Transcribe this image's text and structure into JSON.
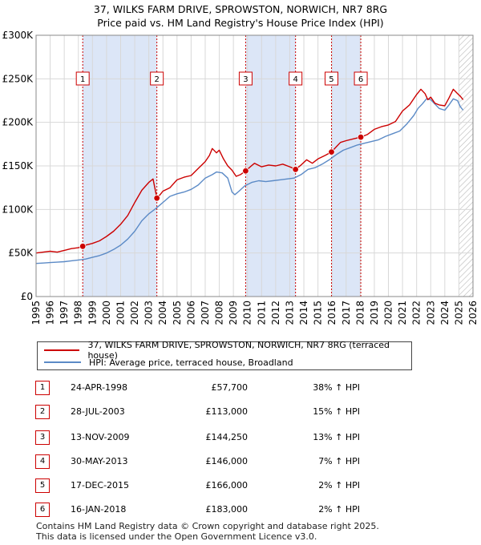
{
  "title_line1": "37, WILKS FARM DRIVE, SPROWSTON, NORWICH, NR7 8RG",
  "title_line2": "Price paid vs. HM Land Registry's House Price Index (HPI)",
  "colors": {
    "price_line": "#cc0000",
    "hpi_line": "#5b8ac6",
    "shade": "#dce6f7",
    "grid": "#d8d8d8",
    "marker_border": "#cc0000"
  },
  "legend": {
    "price_label": "37, WILKS FARM DRIVE, SPROWSTON, NORWICH, NR7 8RG (terraced house)",
    "hpi_label": "HPI: Average price, terraced house, Broadland"
  },
  "transactions": [
    {
      "num": "1",
      "date": "24-APR-1998",
      "price": "£57,700",
      "hpi": "38% ↑ HPI"
    },
    {
      "num": "2",
      "date": "28-JUL-2003",
      "price": "£113,000",
      "hpi": "15% ↑ HPI"
    },
    {
      "num": "3",
      "date": "13-NOV-2009",
      "price": "£144,250",
      "hpi": "13% ↑ HPI"
    },
    {
      "num": "4",
      "date": "30-MAY-2013",
      "price": "£146,000",
      "hpi": "7% ↑ HPI"
    },
    {
      "num": "5",
      "date": "17-DEC-2015",
      "price": "£166,000",
      "hpi": "2% ↑ HPI"
    },
    {
      "num": "6",
      "date": "16-JAN-2018",
      "price": "£183,000",
      "hpi": "2% ↑ HPI"
    }
  ],
  "footer_line1": "Contains HM Land Registry data © Crown copyright and database right 2025.",
  "footer_line2": "This data is licensed under the Open Government Licence v3.0.",
  "chart_data": {
    "type": "line",
    "xlim": [
      1995,
      2026
    ],
    "ylim": [
      0,
      300000
    ],
    "x_ticks": [
      1995,
      1996,
      1997,
      1998,
      1999,
      2000,
      2001,
      2002,
      2003,
      2004,
      2005,
      2006,
      2007,
      2008,
      2009,
      2010,
      2011,
      2012,
      2013,
      2014,
      2015,
      2016,
      2017,
      2018,
      2019,
      2020,
      2021,
      2022,
      2023,
      2024,
      2025,
      2026
    ],
    "y_ticks": [
      {
        "value": 0,
        "label": "£0"
      },
      {
        "value": 50000,
        "label": "£50K"
      },
      {
        "value": 100000,
        "label": "£100K"
      },
      {
        "value": 150000,
        "label": "£150K"
      },
      {
        "value": 200000,
        "label": "£200K"
      },
      {
        "value": 250000,
        "label": "£250K"
      },
      {
        "value": 300000,
        "label": "£300K"
      }
    ],
    "shaded_ranges": [
      [
        1998.31,
        2003.57
      ],
      [
        2009.87,
        2013.41
      ],
      [
        2015.96,
        2018.04
      ]
    ],
    "hatch_from": 2025.0,
    "sales": [
      {
        "label": "1",
        "x": 1998.31,
        "y": 57700
      },
      {
        "label": "2",
        "x": 2003.57,
        "y": 113000
      },
      {
        "label": "3",
        "x": 2009.87,
        "y": 144250
      },
      {
        "label": "4",
        "x": 2013.41,
        "y": 146000
      },
      {
        "label": "5",
        "x": 2015.96,
        "y": 166000
      },
      {
        "label": "6",
        "x": 2018.04,
        "y": 183000
      }
    ],
    "series": [
      {
        "name": "37, WILKS FARM DRIVE, SPROWSTON, NORWICH, NR7 8RG (terraced house)",
        "x": [
          1995,
          1995.5,
          1996,
          1996.5,
          1997,
          1997.5,
          1998,
          1998.31,
          1998.5,
          1999,
          1999.5,
          2000,
          2000.5,
          2001,
          2001.5,
          2002,
          2002.5,
          2003,
          2003.3,
          2003.57,
          2003.8,
          2004,
          2004.5,
          2005,
          2005.5,
          2006,
          2006.5,
          2007,
          2007.3,
          2007.5,
          2007.8,
          2008,
          2008.3,
          2008.6,
          2008.9,
          2009.2,
          2009.5,
          2009.87,
          2010.2,
          2010.5,
          2011,
          2011.5,
          2012,
          2012.5,
          2013,
          2013.41,
          2013.8,
          2014.2,
          2014.6,
          2015,
          2015.5,
          2015.96,
          2016.3,
          2016.6,
          2017,
          2017.5,
          2018.04,
          2018.5,
          2019,
          2019.5,
          2020,
          2020.5,
          2021,
          2021.5,
          2022,
          2022.3,
          2022.6,
          2022.8,
          2023.0,
          2023.3,
          2023.6,
          2024.0,
          2024.3,
          2024.6,
          2024.9,
          2025.1,
          2025.3
        ],
        "y": [
          50000,
          51000,
          52000,
          51000,
          53000,
          55000,
          56000,
          57700,
          59000,
          61000,
          64000,
          69000,
          75000,
          83000,
          93000,
          108000,
          122000,
          131000,
          135000,
          113000,
          117000,
          121000,
          125000,
          134000,
          137000,
          139000,
          147000,
          155000,
          162000,
          170000,
          165000,
          168000,
          158000,
          150000,
          145000,
          138000,
          140000,
          144250,
          149000,
          153000,
          149000,
          151000,
          150000,
          152000,
          149000,
          146000,
          151000,
          157000,
          153000,
          158000,
          162000,
          166000,
          172000,
          177000,
          179000,
          181000,
          183000,
          186000,
          192000,
          195000,
          197000,
          201000,
          213000,
          220000,
          232000,
          238000,
          233000,
          226000,
          229000,
          222000,
          220000,
          219000,
          228000,
          238000,
          233000,
          230000,
          226000
        ]
      },
      {
        "name": "HPI: Average price, terraced house, Broadland",
        "x": [
          1995,
          1995.5,
          1996,
          1996.5,
          1997,
          1997.5,
          1998,
          1998.5,
          1999,
          1999.5,
          2000,
          2000.5,
          2001,
          2001.5,
          2002,
          2002.5,
          2003,
          2003.5,
          2004,
          2004.5,
          2005,
          2005.5,
          2006,
          2006.5,
          2007,
          2007.5,
          2007.8,
          2008.2,
          2008.6,
          2008.9,
          2009.1,
          2009.4,
          2009.8,
          2010.3,
          2010.8,
          2011.3,
          2011.8,
          2012.3,
          2012.8,
          2013.3,
          2013.8,
          2014.3,
          2014.8,
          2015.3,
          2015.8,
          2016.3,
          2016.8,
          2017.3,
          2017.8,
          2018.3,
          2018.8,
          2019.3,
          2019.8,
          2020.3,
          2020.8,
          2021.3,
          2021.8,
          2022.1,
          2022.4,
          2022.7,
          2023.0,
          2023.3,
          2023.6,
          2024.0,
          2024.3,
          2024.6,
          2024.9,
          2025.1,
          2025.3
        ],
        "y": [
          38000,
          38500,
          39000,
          39500,
          40000,
          41000,
          42000,
          43000,
          45000,
          47000,
          50000,
          54000,
          59000,
          66000,
          75000,
          87000,
          95000,
          101000,
          108000,
          115000,
          118000,
          120000,
          123000,
          128000,
          136000,
          140000,
          143000,
          142000,
          136000,
          120000,
          117000,
          121000,
          127000,
          131000,
          133000,
          132000,
          133000,
          134000,
          135000,
          136000,
          140000,
          146000,
          148000,
          152000,
          157000,
          163000,
          168000,
          171000,
          174000,
          176000,
          178000,
          180000,
          184000,
          187000,
          190000,
          198000,
          208000,
          216000,
          221000,
          227000,
          226000,
          221000,
          216000,
          214000,
          220000,
          227000,
          225000,
          218000,
          214000
        ]
      }
    ]
  }
}
